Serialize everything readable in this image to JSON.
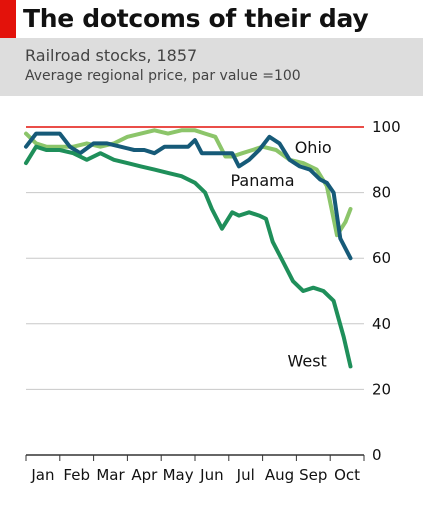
{
  "header": {
    "title": "The dotcoms of their day",
    "subtitle": "Railroad stocks, 1857",
    "subtitle2": "Average regional price, par value =100"
  },
  "colors": {
    "accent": "#e3120b",
    "west": "#1f8f5a",
    "panama": "#165a78",
    "ohio": "#8cc56a",
    "reference_line": "#e3120b",
    "grid": "#c8c8c8",
    "band": "#dddddd"
  },
  "chart_data": {
    "type": "line",
    "title": "The dotcoms of their day",
    "subtitle": "Railroad stocks, 1857",
    "ylabel": "Average regional price, par value =100",
    "xlabel": "",
    "xlim": [
      0,
      10
    ],
    "ylim": [
      0,
      100
    ],
    "y_axis_position": "right",
    "grid": true,
    "reference_line": 100,
    "categories": [
      "Jan",
      "Feb",
      "Mar",
      "Apr",
      "May",
      "Jun",
      "Jul",
      "Aug",
      "Sep",
      "Oct"
    ],
    "yticks": [
      "0",
      "20",
      "40",
      "60",
      "80",
      "100"
    ],
    "series": [
      {
        "name": "Ohio",
        "x": [
          0,
          0.3,
          0.6,
          1.0,
          1.4,
          1.8,
          2.2,
          2.6,
          3.0,
          3.4,
          3.8,
          4.2,
          4.6,
          5.0,
          5.3,
          5.6,
          5.9,
          6.1,
          6.4,
          6.7,
          7.0,
          7.4,
          7.8,
          8.2,
          8.6,
          8.9,
          9.2,
          9.45,
          9.6
        ],
        "y": [
          98,
          95,
          94,
          94,
          94,
          95,
          94,
          95,
          97,
          98,
          99,
          98,
          99,
          99,
          98,
          97,
          91,
          91,
          92,
          93,
          94,
          93,
          90,
          89,
          87,
          82,
          67,
          71,
          75
        ]
      },
      {
        "name": "Panama",
        "x": [
          0,
          0.3,
          0.6,
          1.0,
          1.3,
          1.6,
          2.0,
          2.4,
          2.8,
          3.2,
          3.5,
          3.8,
          4.1,
          4.4,
          4.8,
          5.0,
          5.2,
          5.5,
          5.8,
          6.1,
          6.3,
          6.6,
          6.9,
          7.2,
          7.5,
          7.8,
          8.1,
          8.4,
          8.7,
          8.9,
          9.1,
          9.3,
          9.6
        ],
        "y": [
          94,
          98,
          98,
          98,
          94,
          92,
          95,
          95,
          94,
          93,
          93,
          92,
          94,
          94,
          94,
          96,
          92,
          92,
          92,
          92,
          88,
          90,
          93,
          97,
          95,
          90,
          88,
          87,
          84,
          83,
          80,
          66,
          60
        ]
      },
      {
        "name": "West",
        "x": [
          0,
          0.3,
          0.6,
          1.0,
          1.4,
          1.8,
          2.2,
          2.6,
          3.0,
          3.4,
          3.8,
          4.2,
          4.6,
          5.0,
          5.3,
          5.5,
          5.8,
          6.1,
          6.3,
          6.6,
          6.9,
          7.1,
          7.3,
          7.6,
          7.9,
          8.2,
          8.5,
          8.8,
          9.1,
          9.4,
          9.6
        ],
        "y": [
          89,
          94,
          93,
          93,
          92,
          90,
          92,
          90,
          89,
          88,
          87,
          86,
          85,
          83,
          80,
          75,
          69,
          74,
          73,
          74,
          73,
          72,
          65,
          59,
          53,
          50,
          51,
          50,
          47,
          36,
          27
        ]
      }
    ]
  }
}
